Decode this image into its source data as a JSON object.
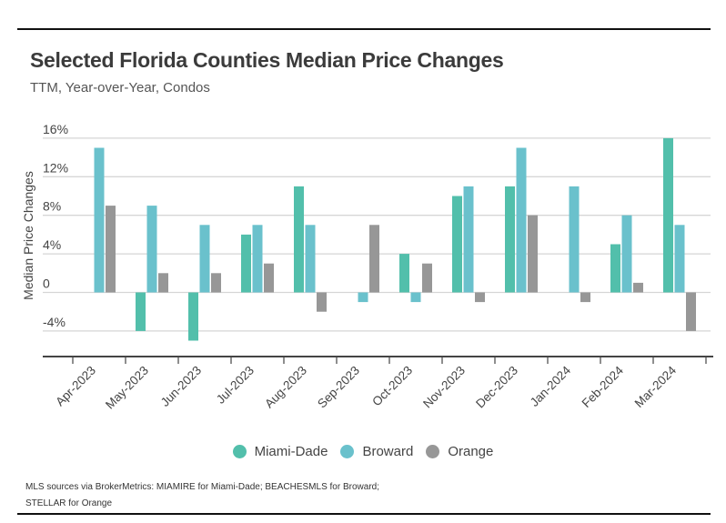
{
  "header": {
    "title": "Selected Florida Counties Median Price Changes",
    "subtitle": "TTM, Year-over-Year, Condos"
  },
  "footer": {
    "line1": "MLS sources via BrokerMetrics: MIAMIRE for Miami-Dade; BEACHESMLS for Broward;",
    "line2": "STELLAR for Orange"
  },
  "chart_data": {
    "type": "bar",
    "title": "Selected Florida Counties Median Price Changes",
    "subtitle": "TTM, Year-over-Year, Condos",
    "xlabel": "",
    "ylabel": "Median Price Changes",
    "ylim": [
      -6,
      16
    ],
    "yticks": [
      16,
      12,
      8,
      4,
      0,
      -4
    ],
    "ytick_labels": [
      "16%",
      "12%",
      "8%",
      "4%",
      "0",
      "-4%"
    ],
    "grid": true,
    "legend_position": "bottom-center",
    "categories": [
      "Apr-2023",
      "May-2023",
      "Jun-2023",
      "Jul-2023",
      "Aug-2023",
      "Sep-2023",
      "Oct-2023",
      "Nov-2023",
      "Dec-2023",
      "Jan-2024",
      "Feb-2024",
      "Mar-2024"
    ],
    "series": [
      {
        "name": "Miami-Dade",
        "color": "#52bfab",
        "values": [
          0,
          -4,
          -5,
          6,
          11,
          0,
          4,
          10,
          11,
          0,
          5,
          16
        ]
      },
      {
        "name": "Broward",
        "color": "#6ac1cc",
        "values": [
          15,
          9,
          7,
          7,
          7,
          -1,
          -1,
          11,
          15,
          11,
          8,
          7
        ]
      },
      {
        "name": "Orange",
        "color": "#979797",
        "values": [
          9,
          2,
          2,
          3,
          -2,
          7,
          3,
          -1,
          8,
          -1,
          1,
          -4
        ]
      }
    ]
  }
}
